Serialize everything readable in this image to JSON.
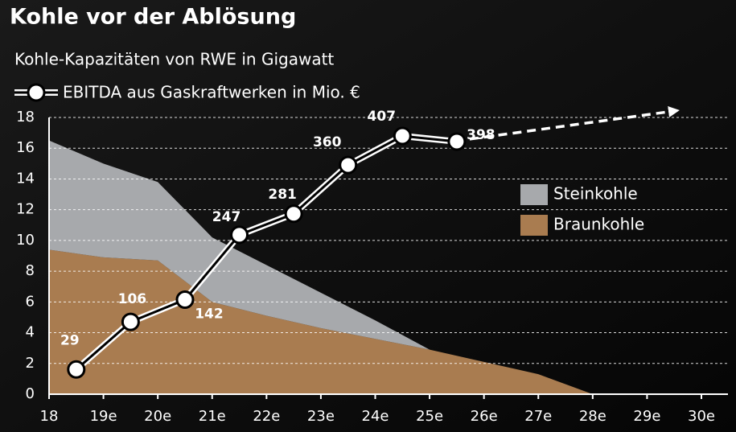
{
  "chart_data": {
    "type": "stacked_area_line",
    "title": "Kohle vor der Ablösung",
    "subtitle": "Kohle-Kapazitäten von RWE in Gigawatt",
    "x": [
      18,
      19,
      20,
      21,
      22,
      23,
      24,
      25,
      26,
      27,
      28
    ],
    "series": [
      {
        "name": "Braunkohle",
        "color": "#a97c50",
        "values": [
          9.4,
          8.9,
          8.7,
          6.0,
          5.1,
          4.3,
          3.6,
          2.9,
          2.1,
          1.3,
          0
        ]
      },
      {
        "name": "Steinkohle",
        "color": "#a7a9ac",
        "values": [
          7.1,
          6.1,
          5.1,
          4.2,
          3.3,
          2.3,
          1.2,
          0,
          0,
          0,
          0
        ]
      },
      {
        "name": "EBITDA aus Gaskraftwerken in Mio. €",
        "type": "line",
        "axis": "y2",
        "color": "#ffffff",
        "x": [
          18.5,
          19.5,
          20.5,
          21.5,
          22.5,
          23.5,
          24.5,
          25.5
        ],
        "values": [
          29,
          106,
          142,
          247,
          281,
          360,
          407,
          398
        ]
      }
    ],
    "xlim": [
      18,
      30
    ],
    "xticks": [
      18,
      {
        "value": 19,
        "label": "19e"
      },
      {
        "value": 20,
        "label": "20e"
      },
      {
        "value": 21,
        "label": "21e"
      },
      {
        "value": 22,
        "label": "22e"
      },
      {
        "value": 23,
        "label": "23e"
      },
      {
        "value": 24,
        "label": "24e"
      },
      {
        "value": 25,
        "label": "25e"
      },
      {
        "value": 26,
        "label": "26e"
      },
      {
        "value": 27,
        "label": "27e"
      },
      {
        "value": 28,
        "label": "28e"
      },
      {
        "value": 29,
        "label": "29e"
      },
      {
        "value": 30,
        "label": "30e"
      }
    ],
    "ylim": [
      0,
      18
    ],
    "yticks": [
      0,
      2,
      4,
      6,
      8,
      10,
      12,
      14,
      16,
      18
    ],
    "y2lim": [
      -11,
      437
    ],
    "grid": true
  }
}
